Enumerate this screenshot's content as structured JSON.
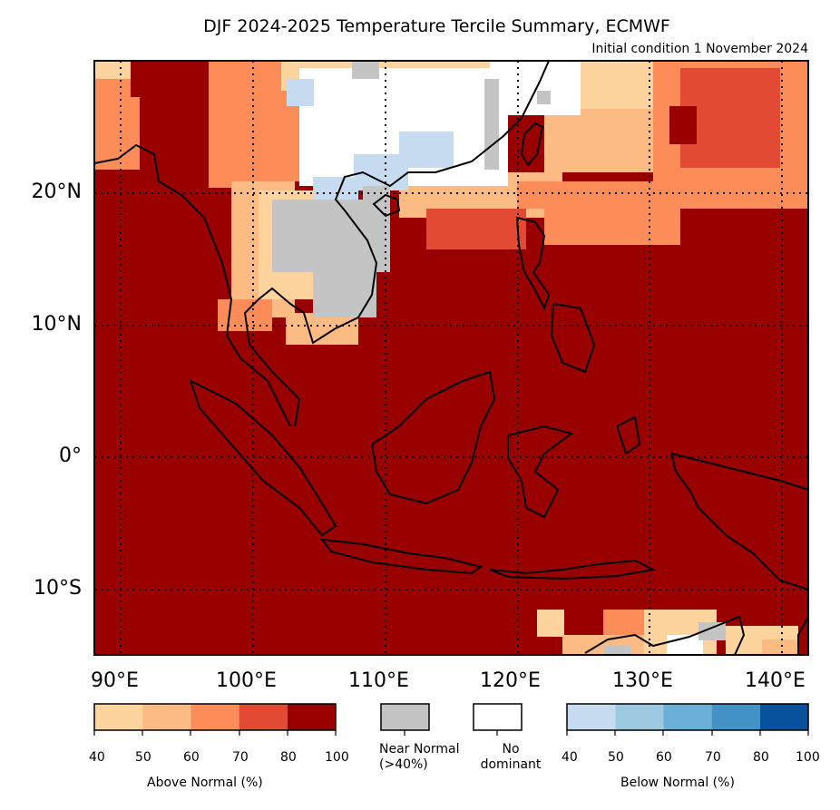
{
  "title": "DJF 2024-2025 Temperature Tercile Summary, ECMWF",
  "subtitle": "Initial condition 1 November 2024",
  "lat_labels": [
    {
      "text": "20°N",
      "lat": 20
    },
    {
      "text": "10°N",
      "lat": 10
    },
    {
      "text": "0°",
      "lat": 0
    },
    {
      "text": "10°S",
      "lat": -10
    }
  ],
  "lon_labels": [
    {
      "text": "90°E",
      "lon": 90
    },
    {
      "text": "100°E",
      "lon": 100
    },
    {
      "text": "110°E",
      "lon": 110
    },
    {
      "text": "120°E",
      "lon": 120
    },
    {
      "text": "130°E",
      "lon": 130
    },
    {
      "text": "140°E",
      "lon": 140
    }
  ],
  "map": {
    "extent": {
      "lon_min": 88,
      "lon_max": 142,
      "lat_min": -15,
      "lat_max": 30
    },
    "background_category": "above_80_100",
    "gridlines": "dotted"
  },
  "colors": {
    "above_40_50": "#fdd49e",
    "above_50_60": "#fdbb84",
    "above_60_70": "#fc8d59",
    "above_70_80": "#e34a33",
    "above_80_100": "#990000",
    "near_normal": "#c4c4c4",
    "no_dominant": "#ffffff",
    "below_40_50": "#c6dbef",
    "below_50_60": "#9ecae1",
    "below_60_70": "#6baed6",
    "below_70_80": "#4292c6",
    "below_80_100": "#08519c"
  },
  "legend": {
    "above": {
      "title": "Above Normal (%)",
      "ticks": [
        "40",
        "50",
        "60",
        "70",
        "80",
        "100"
      ],
      "colors": [
        "#fdd49e",
        "#fdbb84",
        "#fc8d59",
        "#e34a33",
        "#990000"
      ]
    },
    "near_normal": {
      "line1": "Near Normal",
      "line2": "(>40%)",
      "color": "#c4c4c4"
    },
    "no_dominant": {
      "line1": "No",
      "line2": "dominant",
      "color": "#ffffff"
    },
    "below": {
      "title": "Below Normal (%)",
      "ticks": [
        "40",
        "50",
        "60",
        "70",
        "80",
        "100"
      ],
      "colors": [
        "#c6dbef",
        "#9ecae1",
        "#6baed6",
        "#4292c6",
        "#08519c"
      ]
    }
  }
}
